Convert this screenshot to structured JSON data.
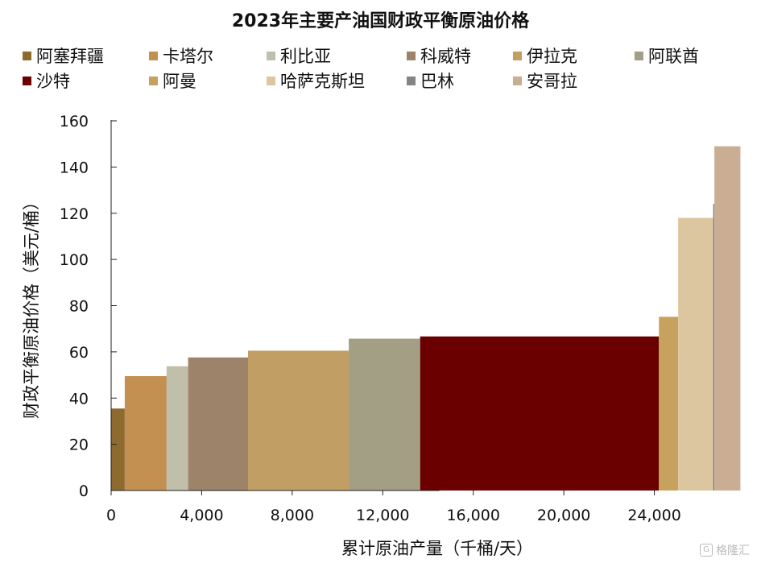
{
  "chart_data": {
    "type": "bar",
    "variant": "variable-width (cost curve)",
    "title": "2023年主要产油国财政平衡原油价格",
    "xlabel": "累计原油产量（千桶/天）",
    "ylabel": "财政平衡原油价格（美元/桶）",
    "xlim": [
      0,
      28000
    ],
    "ylim": [
      0,
      160
    ],
    "x_ticks": [
      "0",
      "4,000",
      "8,000",
      "12,000",
      "16,000",
      "20,000",
      "24,000"
    ],
    "x_tick_values": [
      0,
      4000,
      8000,
      12000,
      16000,
      20000,
      24000
    ],
    "y_ticks": [
      "0",
      "20",
      "40",
      "60",
      "80",
      "100",
      "120",
      "140",
      "160"
    ],
    "y_tick_values": [
      0,
      20,
      40,
      60,
      80,
      100,
      120,
      140,
      160
    ],
    "legend_position": "top",
    "grid": false,
    "series": [
      {
        "name": "阿塞拜疆",
        "x_start": 0,
        "width": 600,
        "value": 35.5,
        "color": "#8e6a2e"
      },
      {
        "name": "卡塔尔",
        "x_start": 600,
        "width": 1850,
        "value": 49.5,
        "color": "#c49052"
      },
      {
        "name": "利比亚",
        "x_start": 2450,
        "width": 950,
        "value": 53.8,
        "color": "#c0bfa9"
      },
      {
        "name": "科威特",
        "x_start": 3400,
        "width": 2650,
        "value": 57.6,
        "color": "#9d836a"
      },
      {
        "name": "伊拉克",
        "x_start": 6050,
        "width": 4450,
        "value": 60.5,
        "color": "#c19e63"
      },
      {
        "name": "阿联酋",
        "x_start": 10500,
        "width": 3150,
        "value": 65.7,
        "color": "#a39f84"
      },
      {
        "name": "沙特",
        "x_start": 13650,
        "width": 10550,
        "value": 66.7,
        "color": "#6b0000"
      },
      {
        "name": "阿曼",
        "x_start": 24200,
        "width": 850,
        "value": 75.2,
        "color": "#c7a25e"
      },
      {
        "name": "哈萨克斯坦",
        "x_start": 25050,
        "width": 1550,
        "value": 118.0,
        "color": "#dcc69f"
      },
      {
        "name": "巴林",
        "x_start": 26600,
        "width": 50,
        "value": 124.0,
        "color": "#848484"
      },
      {
        "name": "安哥拉",
        "x_start": 26650,
        "width": 1150,
        "value": 149.0,
        "color": "#c9ae93"
      }
    ]
  },
  "watermark": {
    "text": "格隆汇",
    "logo": "G"
  }
}
